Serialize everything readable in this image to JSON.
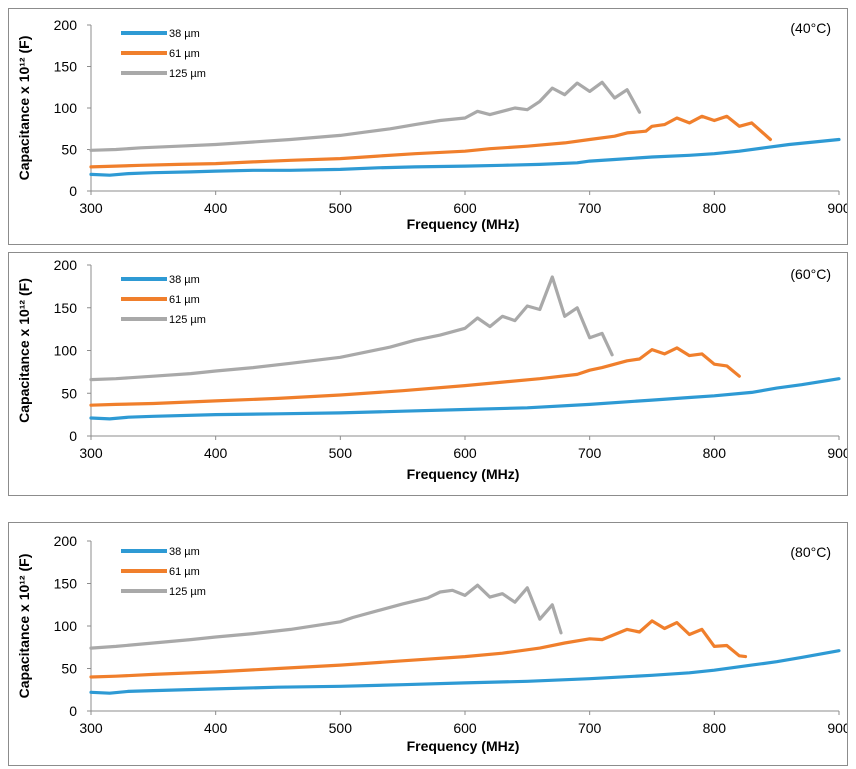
{
  "chart_data": [
    {
      "type": "line",
      "annotation": "(40°C)",
      "xlabel": "Frequency (MHz)",
      "ylabel": "Capacitance x 10¹² (F)",
      "xlim": [
        300,
        900
      ],
      "ylim": [
        0,
        200
      ],
      "xticks": [
        300,
        400,
        500,
        600,
        700,
        800,
        900
      ],
      "yticks": [
        0,
        50,
        100,
        150,
        200
      ],
      "grid": false,
      "legend_position": "top-left",
      "series": [
        {
          "name": "38  µm",
          "color": "#2e9ad4",
          "points": [
            [
              300,
              20
            ],
            [
              315,
              19
            ],
            [
              330,
              21
            ],
            [
              350,
              22
            ],
            [
              380,
              23
            ],
            [
              400,
              24
            ],
            [
              430,
              25
            ],
            [
              460,
              25
            ],
            [
              500,
              26
            ],
            [
              530,
              28
            ],
            [
              560,
              29
            ],
            [
              600,
              30
            ],
            [
              630,
              31
            ],
            [
              660,
              32
            ],
            [
              690,
              34
            ],
            [
              700,
              36
            ],
            [
              720,
              38
            ],
            [
              750,
              41
            ],
            [
              780,
              43
            ],
            [
              800,
              45
            ],
            [
              820,
              48
            ],
            [
              840,
              52
            ],
            [
              860,
              56
            ],
            [
              880,
              59
            ],
            [
              900,
              62
            ]
          ]
        },
        {
          "name": "61 µm",
          "color": "#f07f2c",
          "points": [
            [
              300,
              29
            ],
            [
              320,
              30
            ],
            [
              340,
              31
            ],
            [
              370,
              32
            ],
            [
              400,
              33
            ],
            [
              430,
              35
            ],
            [
              460,
              37
            ],
            [
              500,
              39
            ],
            [
              530,
              42
            ],
            [
              560,
              45
            ],
            [
              600,
              48
            ],
            [
              620,
              51
            ],
            [
              650,
              54
            ],
            [
              680,
              58
            ],
            [
              700,
              62
            ],
            [
              720,
              66
            ],
            [
              730,
              70
            ],
            [
              745,
              72
            ],
            [
              750,
              78
            ],
            [
              760,
              80
            ],
            [
              770,
              88
            ],
            [
              780,
              82
            ],
            [
              790,
              90
            ],
            [
              800,
              85
            ],
            [
              810,
              90
            ],
            [
              820,
              78
            ],
            [
              830,
              82
            ],
            [
              845,
              62
            ]
          ]
        },
        {
          "name": "125 µm",
          "color": "#a9a9a9",
          "points": [
            [
              300,
              49
            ],
            [
              320,
              50
            ],
            [
              340,
              52
            ],
            [
              370,
              54
            ],
            [
              400,
              56
            ],
            [
              430,
              59
            ],
            [
              460,
              62
            ],
            [
              500,
              67
            ],
            [
              520,
              71
            ],
            [
              540,
              75
            ],
            [
              560,
              80
            ],
            [
              580,
              85
            ],
            [
              600,
              88
            ],
            [
              610,
              96
            ],
            [
              620,
              92
            ],
            [
              640,
              100
            ],
            [
              650,
              98
            ],
            [
              660,
              108
            ],
            [
              670,
              124
            ],
            [
              680,
              116
            ],
            [
              690,
              130
            ],
            [
              700,
              120
            ],
            [
              710,
              131
            ],
            [
              720,
              112
            ],
            [
              730,
              122
            ],
            [
              740,
              95
            ]
          ]
        }
      ]
    },
    {
      "type": "line",
      "annotation": "(60°C)",
      "xlabel": "Frequency (MHz)",
      "ylabel": "Capacitance x 10¹² (F)",
      "xlim": [
        300,
        900
      ],
      "ylim": [
        0,
        200
      ],
      "xticks": [
        300,
        400,
        500,
        600,
        700,
        800,
        900
      ],
      "yticks": [
        0,
        50,
        100,
        150,
        200
      ],
      "grid": false,
      "legend_position": "top-left",
      "series": [
        {
          "name": "38  µm",
          "color": "#2e9ad4",
          "points": [
            [
              300,
              21
            ],
            [
              315,
              20
            ],
            [
              330,
              22
            ],
            [
              350,
              23
            ],
            [
              400,
              25
            ],
            [
              450,
              26
            ],
            [
              500,
              27
            ],
            [
              550,
              29
            ],
            [
              600,
              31
            ],
            [
              650,
              33
            ],
            [
              700,
              37
            ],
            [
              750,
              42
            ],
            [
              780,
              45
            ],
            [
              800,
              47
            ],
            [
              830,
              51
            ],
            [
              850,
              56
            ],
            [
              870,
              60
            ],
            [
              900,
              67
            ]
          ]
        },
        {
          "name": "61 µm",
          "color": "#f07f2c",
          "points": [
            [
              300,
              36
            ],
            [
              320,
              37
            ],
            [
              350,
              38
            ],
            [
              400,
              41
            ],
            [
              450,
              44
            ],
            [
              500,
              48
            ],
            [
              550,
              53
            ],
            [
              600,
              59
            ],
            [
              630,
              63
            ],
            [
              660,
              67
            ],
            [
              690,
              72
            ],
            [
              700,
              77
            ],
            [
              710,
              80
            ],
            [
              720,
              84
            ],
            [
              730,
              88
            ],
            [
              740,
              90
            ],
            [
              750,
              101
            ],
            [
              760,
              96
            ],
            [
              770,
              103
            ],
            [
              780,
              94
            ],
            [
              790,
              96
            ],
            [
              800,
              84
            ],
            [
              810,
              82
            ],
            [
              820,
              70
            ]
          ]
        },
        {
          "name": "125 µm",
          "color": "#a9a9a9",
          "points": [
            [
              300,
              66
            ],
            [
              320,
              67
            ],
            [
              350,
              70
            ],
            [
              380,
              73
            ],
            [
              400,
              76
            ],
            [
              430,
              80
            ],
            [
              460,
              85
            ],
            [
              500,
              92
            ],
            [
              520,
              98
            ],
            [
              540,
              104
            ],
            [
              560,
              112
            ],
            [
              580,
              118
            ],
            [
              600,
              126
            ],
            [
              610,
              138
            ],
            [
              620,
              128
            ],
            [
              630,
              140
            ],
            [
              640,
              135
            ],
            [
              650,
              152
            ],
            [
              660,
              148
            ],
            [
              670,
              186
            ],
            [
              680,
              140
            ],
            [
              690,
              150
            ],
            [
              700,
              115
            ],
            [
              710,
              120
            ],
            [
              718,
              95
            ]
          ]
        }
      ]
    },
    {
      "type": "line",
      "annotation": "(80°C)",
      "xlabel": "Frequency (MHz)",
      "ylabel": "Capacitance x 10¹² (F)",
      "xlim": [
        300,
        900
      ],
      "ylim": [
        0,
        200
      ],
      "xticks": [
        300,
        400,
        500,
        600,
        700,
        800,
        900
      ],
      "yticks": [
        0,
        50,
        100,
        150,
        200
      ],
      "grid": false,
      "legend_position": "top-left",
      "series": [
        {
          "name": "38  µm",
          "color": "#2e9ad4",
          "points": [
            [
              300,
              22
            ],
            [
              315,
              21
            ],
            [
              330,
              23
            ],
            [
              350,
              24
            ],
            [
              400,
              26
            ],
            [
              450,
              28
            ],
            [
              500,
              29
            ],
            [
              550,
              31
            ],
            [
              600,
              33
            ],
            [
              650,
              35
            ],
            [
              700,
              38
            ],
            [
              750,
              42
            ],
            [
              780,
              45
            ],
            [
              800,
              48
            ],
            [
              830,
              54
            ],
            [
              850,
              58
            ],
            [
              870,
              63
            ],
            [
              900,
              71
            ]
          ]
        },
        {
          "name": "61 µm",
          "color": "#f07f2c",
          "points": [
            [
              300,
              40
            ],
            [
              320,
              41
            ],
            [
              350,
              43
            ],
            [
              400,
              46
            ],
            [
              450,
              50
            ],
            [
              500,
              54
            ],
            [
              550,
              59
            ],
            [
              600,
              64
            ],
            [
              630,
              68
            ],
            [
              660,
              74
            ],
            [
              680,
              80
            ],
            [
              700,
              85
            ],
            [
              710,
              84
            ],
            [
              720,
              90
            ],
            [
              730,
              96
            ],
            [
              740,
              93
            ],
            [
              750,
              106
            ],
            [
              760,
              97
            ],
            [
              770,
              104
            ],
            [
              780,
              90
            ],
            [
              790,
              96
            ],
            [
              800,
              76
            ],
            [
              810,
              77
            ],
            [
              820,
              65
            ],
            [
              825,
              64
            ]
          ]
        },
        {
          "name": "125 µm",
          "color": "#a9a9a9",
          "points": [
            [
              300,
              74
            ],
            [
              320,
              76
            ],
            [
              350,
              80
            ],
            [
              380,
              84
            ],
            [
              400,
              87
            ],
            [
              430,
              91
            ],
            [
              460,
              96
            ],
            [
              500,
              105
            ],
            [
              510,
              110
            ],
            [
              530,
              118
            ],
            [
              550,
              126
            ],
            [
              570,
              133
            ],
            [
              580,
              140
            ],
            [
              590,
              142
            ],
            [
              600,
              136
            ],
            [
              610,
              148
            ],
            [
              620,
              134
            ],
            [
              630,
              138
            ],
            [
              640,
              128
            ],
            [
              650,
              145
            ],
            [
              660,
              108
            ],
            [
              670,
              125
            ],
            [
              677,
              92
            ]
          ]
        }
      ]
    }
  ]
}
